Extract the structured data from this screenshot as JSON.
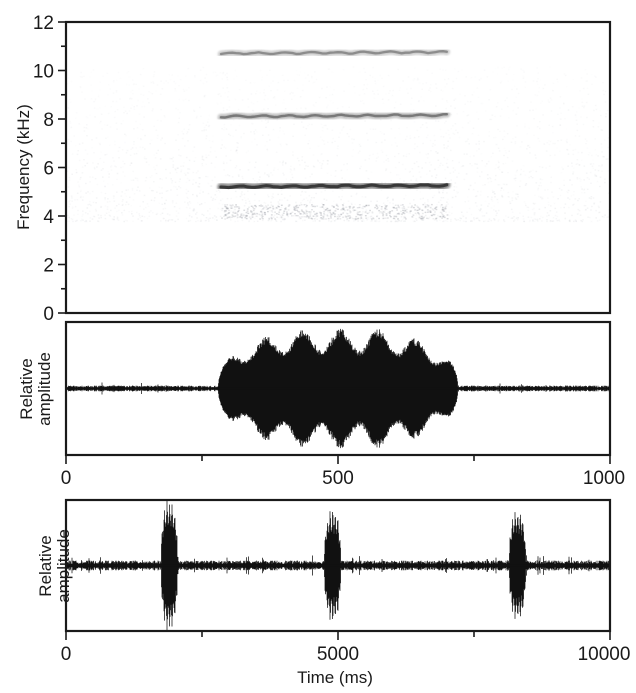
{
  "chart_data": [
    {
      "type": "heatmap",
      "kind": "spectrogram",
      "ylabel": "Frequency (kHz)",
      "ylim": [
        0,
        12
      ],
      "yticks": [
        0,
        2,
        4,
        6,
        8,
        10,
        12
      ],
      "xlim": [
        0,
        1000
      ],
      "x_units": "ms",
      "background_noise_band_khz": [
        3.8,
        10.2
      ],
      "harmonics": [
        {
          "freq_khz": 5.2,
          "t_start_ms": 285,
          "t_end_ms": 700,
          "intensity": 0.95
        },
        {
          "freq_khz": 8.1,
          "t_start_ms": 285,
          "t_end_ms": 700,
          "intensity": 0.55
        },
        {
          "freq_khz": 10.7,
          "t_start_ms": 285,
          "t_end_ms": 700,
          "intensity": 0.45
        }
      ],
      "colors": {
        "ink": "#1a1a1a",
        "noise": "#bfc2c8"
      }
    },
    {
      "type": "line",
      "kind": "waveform",
      "ylabel": "Relative amplitude",
      "xlim": [
        0,
        1000
      ],
      "xticks": [
        0,
        500,
        1000
      ],
      "xticks_minor": [
        250,
        750
      ],
      "ylim": [
        -1,
        1
      ],
      "baseline_amplitude": 0.03,
      "bursts": [
        {
          "t_start_ms": 280,
          "t_end_ms": 720,
          "amplitude": 0.9
        }
      ]
    },
    {
      "type": "line",
      "kind": "waveform",
      "ylabel": "Relative amplitude",
      "xlabel": "Time (ms)",
      "xlim": [
        0,
        10000
      ],
      "xticks": [
        0,
        5000,
        10000
      ],
      "xticks_minor": [
        2500,
        7500
      ],
      "ylim": [
        -1,
        1
      ],
      "baseline_amplitude": 0.05,
      "bursts": [
        {
          "t_start_ms": 1750,
          "t_end_ms": 2050,
          "amplitude": 1.0
        },
        {
          "t_start_ms": 4750,
          "t_end_ms": 5050,
          "amplitude": 0.85
        },
        {
          "t_start_ms": 8150,
          "t_end_ms": 8450,
          "amplitude": 0.85
        }
      ]
    }
  ]
}
